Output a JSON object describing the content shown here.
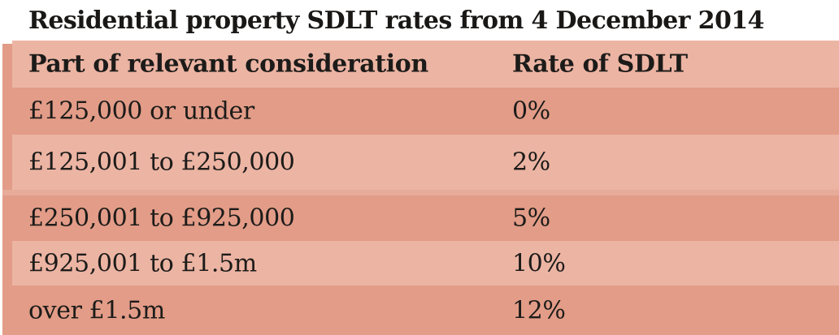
{
  "title": "Residential property SDLT rates from 4 December 2014",
  "chart_data": {
    "type": "table",
    "title": "Residential property SDLT rates from 4 December 2014",
    "columns": [
      "Part of relevant consideration",
      "Rate of SDLT"
    ],
    "rows": [
      [
        "£125,000 or under",
        "0%"
      ],
      [
        "£125,001 to £250,000",
        "2%"
      ],
      [
        "£250,001 to £925,000",
        "5%"
      ],
      [
        "£925,001 to £1.5m",
        "10%"
      ],
      [
        "over £1.5m",
        "12%"
      ]
    ],
    "rate_values_percent": [
      0,
      2,
      5,
      10,
      12
    ]
  },
  "colors": {
    "background": "#ffffff",
    "row_dark_salmon": "#e29c87",
    "row_light_salmon": "#ecb4a3",
    "section_divider": "#e7ab99",
    "text": "#1c1b19"
  }
}
